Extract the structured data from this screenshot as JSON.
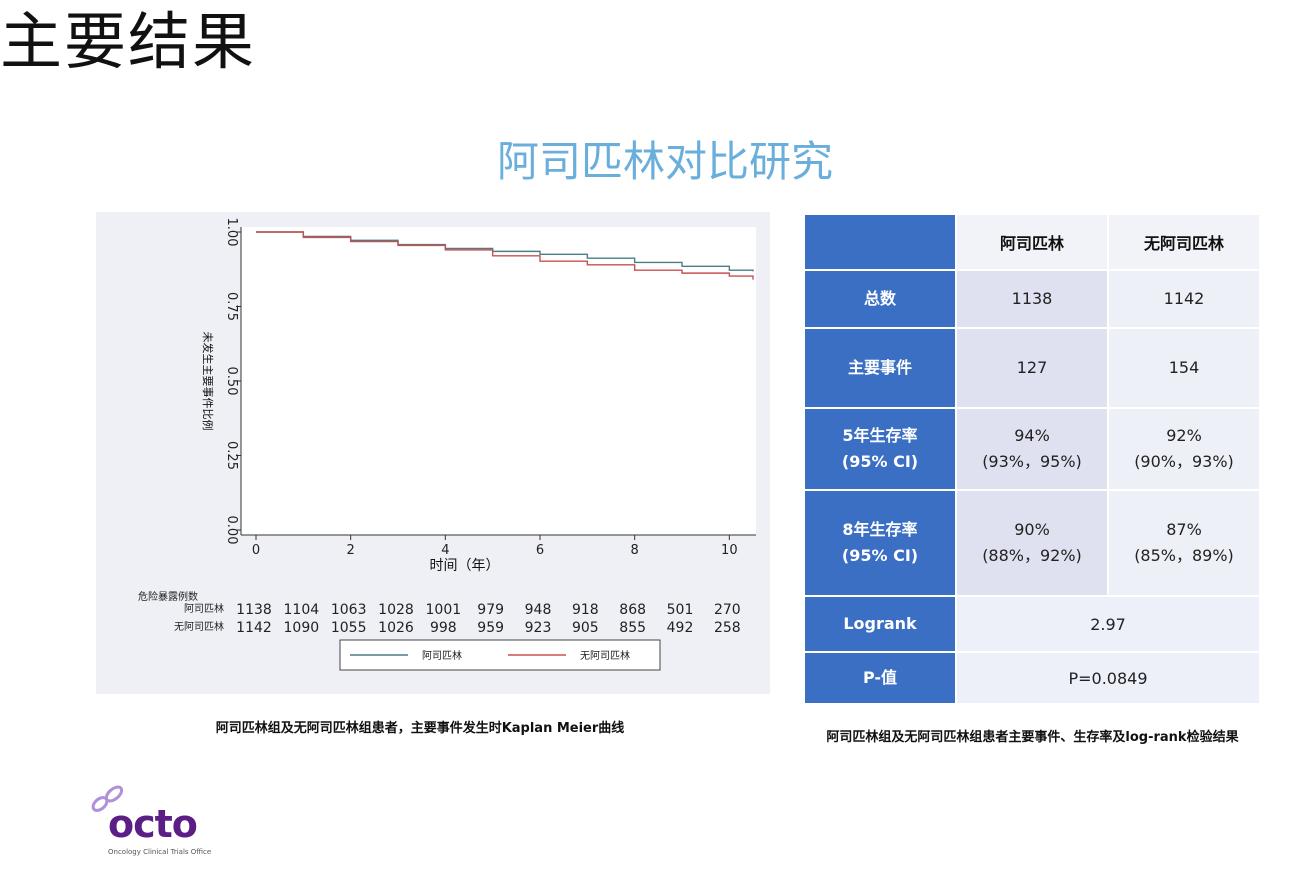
{
  "slide_title": "主要结果",
  "sub_title": "阿司匹林对比研究",
  "chart_data": {
    "type": "line",
    "title": "",
    "xlabel": "时间（年）",
    "ylabel": "未发生主要事件比例",
    "xlim": [
      0,
      10.5
    ],
    "ylim": [
      0,
      1
    ],
    "x_ticks": [
      0,
      2,
      4,
      6,
      8,
      10
    ],
    "y_ticks": [
      "0.00",
      "0.25",
      "0.50",
      "0.75",
      "1.00"
    ],
    "y_tick_values": [
      0,
      0.25,
      0.5,
      0.75,
      1.0
    ],
    "legend_position": "bottom",
    "series": [
      {
        "name": "阿司匹林",
        "color": "#4a7f86",
        "x": [
          0,
          1,
          2,
          3,
          4,
          5,
          6,
          7,
          8,
          9,
          10,
          10.5
        ],
        "y": [
          1.0,
          0.985,
          0.972,
          0.958,
          0.945,
          0.935,
          0.925,
          0.912,
          0.898,
          0.885,
          0.872,
          0.868
        ]
      },
      {
        "name": "无阿司匹林",
        "color": "#c85050",
        "x": [
          0,
          1,
          2,
          3,
          4,
          5,
          6,
          7,
          8,
          9,
          10,
          10.5
        ],
        "y": [
          1.0,
          0.982,
          0.968,
          0.955,
          0.94,
          0.92,
          0.902,
          0.89,
          0.872,
          0.862,
          0.852,
          0.84
        ]
      }
    ],
    "risk_table": {
      "label": "危险暴露例数",
      "rows": [
        {
          "name": "阿司匹林",
          "values": [
            "1138",
            "1104",
            "1063",
            "1028",
            "1001",
            "979",
            "948",
            "918",
            "868",
            "501",
            "270"
          ]
        },
        {
          "name": "无阿司匹林",
          "values": [
            "1142",
            "1090",
            "1055",
            "1026",
            "998",
            "959",
            "923",
            "905",
            "855",
            "492",
            "258"
          ]
        }
      ]
    }
  },
  "chart_caption": "阿司匹林组及无阿司匹林组患者，主要事件发生时Kaplan Meier曲线",
  "table": {
    "headers": [
      "阿司匹林",
      "无阿司匹林"
    ],
    "rows": [
      {
        "label": "总数",
        "label2": "",
        "v1": "1138",
        "v1b": "",
        "v2": "1142",
        "v2b": ""
      },
      {
        "label": "主要事件",
        "label2": "",
        "v1": "127",
        "v1b": "",
        "v2": "154",
        "v2b": ""
      },
      {
        "label": "5年生存率",
        "label2": "(95% CI)",
        "v1": "94%",
        "v1b": "(93%，95%)",
        "v2": "92%",
        "v2b": "(90%，93%)"
      },
      {
        "label": "8年生存率",
        "label2": "(95% CI)",
        "v1": "90%",
        "v1b": "(88%，92%)",
        "v2": "87%",
        "v2b": "(85%，89%)"
      }
    ],
    "logrank_label": "Logrank",
    "logrank_value": "2.97",
    "p_label": "P-值",
    "p_value": "P=0.0849"
  },
  "table_caption": "阿司匹林组及无阿司匹林组患者主要事件、生存率及log-rank检验结果",
  "logo": {
    "text": "octo",
    "tagline": "Oncology Clinical Trials Office",
    "color": "#5a1e86",
    "accent": "#b090d8"
  }
}
